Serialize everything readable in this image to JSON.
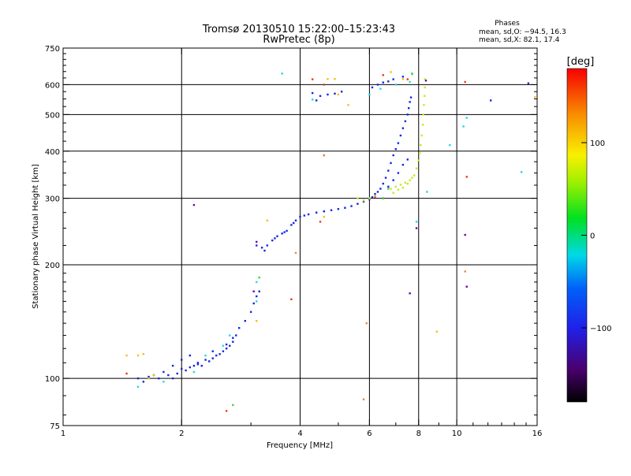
{
  "header": {
    "title": "Tromsø 20130510 15:22:00–15:23:43",
    "subtitle": "RwPretec (8p)",
    "phases_title": "Phases",
    "phases_o": "mean, sd,O: −94.5, 16.3",
    "phases_x": "mean, sd,X:  82.1, 17.4"
  },
  "colorbar": {
    "unit_label": "[deg]",
    "ticks": [
      {
        "value": 100,
        "label": "100"
      },
      {
        "value": 0,
        "label": "0"
      },
      {
        "value": -100,
        "label": "−100"
      }
    ],
    "range": [
      -180,
      180
    ]
  },
  "chart_data": {
    "type": "scatter",
    "xlabel": "Frequency [MHz]",
    "ylabel": "Stationary phase Virtual Height [km]",
    "x_scale": "log",
    "y_scale": "log",
    "xlim": [
      1,
      16
    ],
    "ylim": [
      75,
      750
    ],
    "x_ticks": [
      {
        "value": 1,
        "label": "1"
      },
      {
        "value": 2,
        "label": "2"
      },
      {
        "value": 4,
        "label": "4"
      },
      {
        "value": 6,
        "label": "6"
      },
      {
        "value": 8,
        "label": "8"
      },
      {
        "value": 10,
        "label": "10"
      },
      {
        "value": 16,
        "label": "16"
      }
    ],
    "y_ticks": [
      {
        "value": 75,
        "label": "75"
      },
      {
        "value": 100,
        "label": "100"
      },
      {
        "value": 200,
        "label": "200"
      },
      {
        "value": 300,
        "label": "300"
      },
      {
        "value": 400,
        "label": "400"
      },
      {
        "value": 500,
        "label": "500"
      },
      {
        "value": 600,
        "label": "600"
      },
      {
        "value": 750,
        "label": "750"
      }
    ],
    "grid_x": [
      2,
      4,
      6,
      8,
      10
    ],
    "grid_y": [
      100,
      200,
      300,
      400,
      500,
      600
    ],
    "series": [
      {
        "color": "#1428e0",
        "points": [
          [
            1.55,
            100
          ],
          [
            1.6,
            98
          ],
          [
            1.65,
            101
          ],
          [
            1.7,
            102
          ],
          [
            1.75,
            100
          ],
          [
            1.8,
            104
          ],
          [
            1.85,
            102
          ],
          [
            1.9,
            100
          ],
          [
            1.95,
            103
          ],
          [
            2.0,
            106
          ],
          [
            2.05,
            105
          ],
          [
            2.1,
            107
          ],
          [
            2.15,
            108
          ],
          [
            2.2,
            110
          ],
          [
            2.25,
            108
          ],
          [
            2.3,
            112
          ],
          [
            2.35,
            111
          ],
          [
            2.4,
            113
          ],
          [
            2.45,
            115
          ],
          [
            2.5,
            116
          ],
          [
            2.55,
            118
          ],
          [
            2.6,
            120
          ],
          [
            2.65,
            122
          ],
          [
            2.7,
            125
          ],
          [
            2.75,
            130
          ],
          [
            2.8,
            136
          ],
          [
            2.9,
            142
          ],
          [
            3.0,
            150
          ],
          [
            3.05,
            158
          ],
          [
            3.1,
            165
          ],
          [
            3.15,
            170
          ],
          [
            1.9,
            108
          ],
          [
            2.0,
            112
          ],
          [
            2.1,
            115
          ],
          [
            2.2,
            109
          ],
          [
            2.4,
            118
          ],
          [
            2.6,
            123
          ],
          [
            2.7,
            128
          ],
          [
            3.1,
            225
          ],
          [
            3.2,
            222
          ],
          [
            3.3,
            225
          ],
          [
            3.4,
            232
          ],
          [
            3.5,
            238
          ],
          [
            3.6,
            242
          ],
          [
            3.7,
            246
          ],
          [
            3.8,
            255
          ],
          [
            3.9,
            262
          ],
          [
            4.0,
            268
          ],
          [
            4.1,
            270
          ],
          [
            4.2,
            272
          ],
          [
            4.4,
            275
          ],
          [
            4.6,
            277
          ],
          [
            4.8,
            279
          ],
          [
            5.0,
            281
          ],
          [
            5.2,
            283
          ],
          [
            5.4,
            286
          ],
          [
            5.6,
            290
          ],
          [
            5.8,
            294
          ],
          [
            6.0,
            298
          ],
          [
            6.1,
            302
          ],
          [
            3.25,
            218
          ],
          [
            3.45,
            235
          ],
          [
            3.65,
            244
          ],
          [
            3.85,
            258
          ],
          [
            6.2,
            308
          ],
          [
            6.4,
            318
          ],
          [
            6.5,
            328
          ],
          [
            6.6,
            340
          ],
          [
            6.7,
            355
          ],
          [
            6.8,
            372
          ],
          [
            6.9,
            390
          ],
          [
            7.0,
            405
          ],
          [
            7.1,
            420
          ],
          [
            7.2,
            440
          ],
          [
            7.3,
            460
          ],
          [
            7.4,
            480
          ],
          [
            7.5,
            500
          ],
          [
            7.55,
            520
          ],
          [
            7.6,
            540
          ],
          [
            7.65,
            555
          ],
          [
            6.3,
            312
          ],
          [
            6.5,
            300
          ],
          [
            6.7,
            322
          ],
          [
            6.9,
            335
          ],
          [
            7.1,
            350
          ],
          [
            7.3,
            368
          ],
          [
            7.5,
            380
          ],
          [
            4.3,
            570
          ],
          [
            4.5,
            560
          ],
          [
            4.7,
            565
          ],
          [
            4.9,
            568
          ],
          [
            5.1,
            575
          ],
          [
            4.4,
            545
          ],
          [
            6.1,
            590
          ],
          [
            6.3,
            600
          ],
          [
            6.5,
            608
          ],
          [
            6.7,
            612
          ],
          [
            6.9,
            620
          ],
          [
            7.3,
            630
          ],
          [
            12.2,
            545
          ],
          [
            15.2,
            605
          ]
        ]
      },
      {
        "color": "#c8e81e",
        "points": [
          [
            6.8,
            318
          ],
          [
            7.0,
            322
          ],
          [
            7.2,
            326
          ],
          [
            7.4,
            330
          ],
          [
            7.6,
            335
          ],
          [
            7.8,
            345
          ],
          [
            7.9,
            360
          ],
          [
            8.0,
            378
          ],
          [
            8.05,
            395
          ],
          [
            8.1,
            415
          ],
          [
            8.15,
            440
          ],
          [
            8.2,
            470
          ],
          [
            8.22,
            500
          ],
          [
            8.25,
            530
          ],
          [
            8.28,
            560
          ],
          [
            8.3,
            590
          ],
          [
            8.3,
            620
          ],
          [
            6.9,
            310
          ],
          [
            7.1,
            316
          ],
          [
            7.3,
            320
          ],
          [
            7.5,
            328
          ],
          [
            7.7,
            340
          ],
          [
            5.6,
            300
          ],
          [
            5.8,
            296
          ],
          [
            6.0,
            300
          ],
          [
            6.2,
            304
          ]
        ]
      },
      {
        "color": "#22d8e0",
        "points": [
          [
            1.55,
            95
          ],
          [
            1.8,
            98
          ],
          [
            2.15,
            104
          ],
          [
            2.3,
            115
          ],
          [
            2.55,
            122
          ],
          [
            2.65,
            130
          ],
          [
            3.1,
            160
          ],
          [
            3.1,
            180
          ],
          [
            3.6,
            642
          ],
          [
            4.3,
            548
          ],
          [
            6.0,
            565
          ],
          [
            6.4,
            585
          ],
          [
            7.0,
            600
          ],
          [
            7.6,
            610
          ],
          [
            7.7,
            640
          ],
          [
            8.4,
            312
          ],
          [
            10.4,
            465
          ],
          [
            10.6,
            490
          ],
          [
            9.6,
            415
          ],
          [
            14.6,
            352
          ],
          [
            7.9,
            260
          ]
        ]
      },
      {
        "color": "#f0c020",
        "points": [
          [
            1.45,
            115
          ],
          [
            1.55,
            115
          ],
          [
            1.6,
            116
          ],
          [
            1.7,
            102
          ],
          [
            1.65,
            100
          ],
          [
            3.1,
            142
          ],
          [
            3.3,
            262
          ],
          [
            4.6,
            268
          ],
          [
            4.7,
            621
          ],
          [
            4.9,
            621
          ],
          [
            5.3,
            530
          ],
          [
            5.0,
            565
          ],
          [
            6.8,
            648
          ],
          [
            7.3,
            621
          ],
          [
            8.9,
            133
          ],
          [
            15.8,
            556
          ]
        ]
      },
      {
        "color": "#e83c14",
        "points": [
          [
            1.45,
            103
          ],
          [
            2.6,
            82
          ],
          [
            3.8,
            162
          ],
          [
            4.5,
            260
          ],
          [
            4.6,
            390
          ],
          [
            6.5,
            636
          ],
          [
            7.5,
            620
          ],
          [
            10.5,
            610
          ],
          [
            10.6,
            342
          ],
          [
            4.3,
            620
          ],
          [
            4.6,
            600
          ]
        ]
      },
      {
        "color": "#6a0c9a",
        "points": [
          [
            3.05,
            170
          ],
          [
            3.1,
            230
          ],
          [
            7.9,
            250
          ],
          [
            10.5,
            240
          ],
          [
            7.6,
            168
          ],
          [
            10.6,
            175
          ],
          [
            2.15,
            288
          ],
          [
            8.35,
            615
          ],
          [
            6.2,
            302
          ]
        ]
      },
      {
        "color": "#44d044",
        "points": [
          [
            3.15,
            185
          ],
          [
            2.7,
            85
          ],
          [
            6.5,
            300
          ],
          [
            6.7,
            318
          ],
          [
            7.7,
            642
          ]
        ]
      },
      {
        "color": "#f08a2a",
        "points": [
          [
            3.9,
            215
          ],
          [
            5.9,
            140
          ],
          [
            5.8,
            88
          ],
          [
            10.5,
            192
          ],
          [
            6.2,
            303
          ],
          [
            4.6,
            390
          ]
        ]
      }
    ]
  }
}
